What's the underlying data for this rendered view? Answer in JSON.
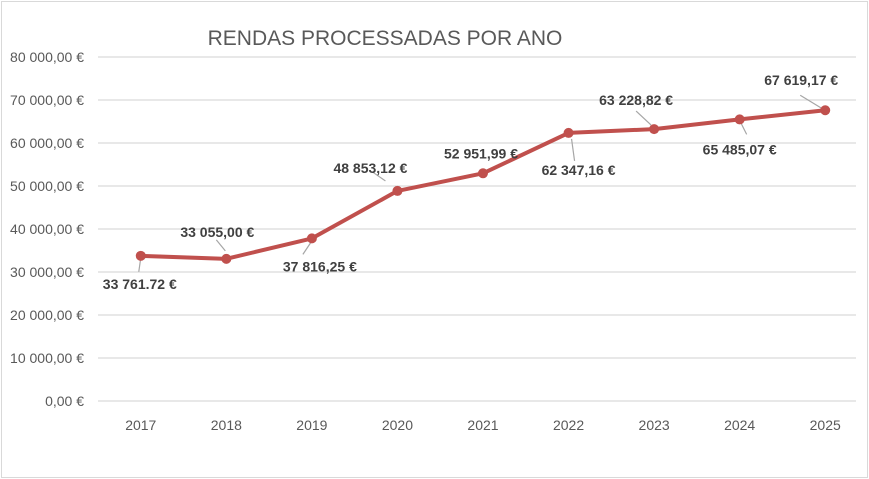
{
  "chart_data": {
    "type": "line",
    "title": "RENDAS PROCESSADAS POR ANO",
    "xlabel": "",
    "ylabel": "",
    "categories": [
      "2017",
      "2018",
      "2019",
      "2020",
      "2021",
      "2022",
      "2023",
      "2024",
      "2025"
    ],
    "series": [
      {
        "name": "Rendas processadas",
        "color": "#c0504d",
        "values": [
          33761.72,
          33055.0,
          37816.25,
          48853.12,
          52951.99,
          62347.16,
          63228.82,
          65485.07,
          67619.17
        ]
      }
    ],
    "data_labels": [
      "33 761.72 €",
      "33 055,00 €",
      "37 816,25 €",
      "48 853,12 €",
      "52 951,99 €",
      "62 347,16 €",
      "63 228,82 €",
      "65 485,07 €",
      "67 619,17 €"
    ],
    "ylim": [
      0,
      80000
    ],
    "yticks": [
      0,
      10000,
      20000,
      30000,
      40000,
      50000,
      60000,
      70000,
      80000
    ],
    "ytick_labels": [
      "0,00 €",
      "10 000,00 €",
      "20 000,00 €",
      "30 000,00 €",
      "40 000,00 €",
      "50 000,00 €",
      "60 000,00 €",
      "70 000,00 €",
      "80 000,00 €"
    ],
    "grid": true,
    "legend": "none"
  }
}
